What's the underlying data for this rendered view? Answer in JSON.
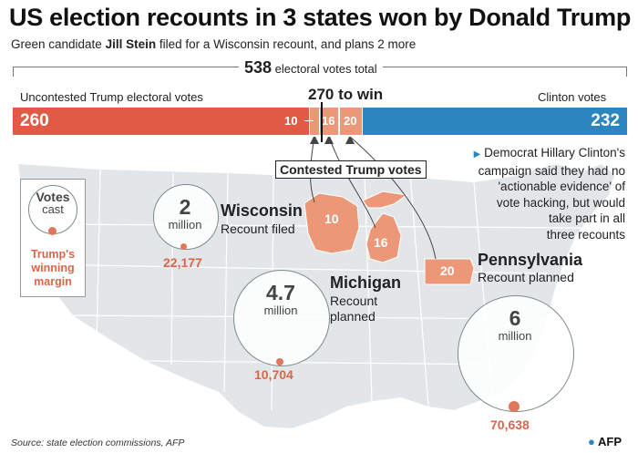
{
  "title": "US election recounts in 3 states won by Donald Trump",
  "subtitle": {
    "pre": "Green candidate ",
    "name": "Jill Stein",
    "post": " filed for a Wisconsin recount, and plans 2 more"
  },
  "bar": {
    "total_num": "538",
    "total_label": " electoral votes total",
    "to_win": "270 to win",
    "left_label": "Uncontested Trump electoral votes",
    "right_label": "Clinton votes",
    "segments": [
      {
        "name": "Uncontested Trump",
        "value": 260,
        "label": "260",
        "color": "#e05a45"
      },
      {
        "name": "Wisconsin",
        "value": 10,
        "label": "10",
        "color": "#ec9878"
      },
      {
        "name": "Michigan",
        "value": 16,
        "label": "16",
        "color": "#ec9878"
      },
      {
        "name": "Pennsylvania",
        "value": 20,
        "label": "20",
        "color": "#ec9878"
      },
      {
        "name": "Clinton",
        "value": 232,
        "label": "232",
        "color": "#2b86c0"
      }
    ],
    "contested_label": "Contested Trump votes"
  },
  "legend": {
    "line1": "Votes",
    "line2": "cast",
    "caption": [
      "Trump's",
      "winning",
      "margin"
    ]
  },
  "states": {
    "wisconsin": {
      "name": "Wisconsin",
      "status": "Recount filed",
      "ev": "10",
      "votes_num": "2",
      "votes_unit": "million",
      "margin": "22,177"
    },
    "michigan": {
      "name": "Michigan",
      "status_1": "Recount",
      "status_2": "planned",
      "ev": "16",
      "votes_num": "4.7",
      "votes_unit": "million",
      "margin": "10,704"
    },
    "pennsylvania": {
      "name": "Pennsylvania",
      "status": "Recount planned",
      "ev": "20",
      "votes_num": "6",
      "votes_unit": "million",
      "margin": "70,638"
    }
  },
  "note": {
    "lines": [
      "Democrat Hillary Clinton's",
      "campaign said they had no",
      "'actionable evidence' of",
      "vote hacking, but would",
      "take part in all",
      "three recounts"
    ]
  },
  "source": "Source: state election commissions, AFP",
  "logo": "AFP",
  "colors": {
    "trump": "#e05a45",
    "contested": "#ec9878",
    "clinton": "#2b86c0",
    "map": "#e3e6e8"
  }
}
